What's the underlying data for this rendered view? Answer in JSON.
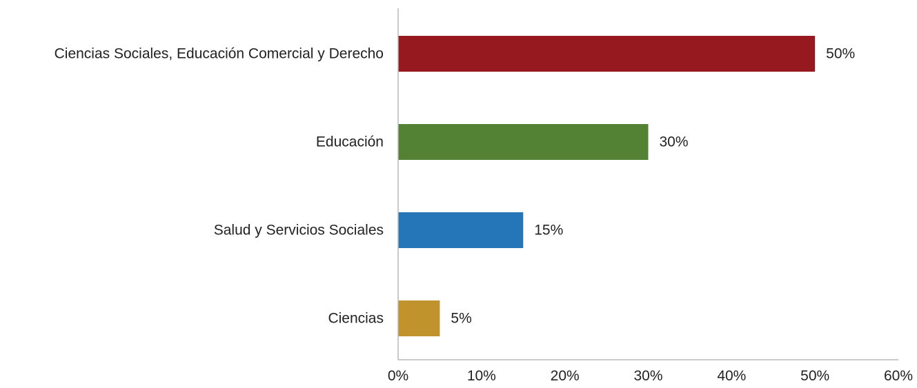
{
  "chart_data": {
    "type": "bar",
    "orientation": "horizontal",
    "categories": [
      "Ciencias Sociales, Educación Comercial y Derecho",
      "Educación",
      "Salud y Servicios Sociales",
      "Ciencias"
    ],
    "values": [
      50,
      30,
      15,
      5
    ],
    "value_labels": [
      "50%",
      "30%",
      "15%",
      "5%"
    ],
    "colors": [
      "#95191e",
      "#548235",
      "#2476b8",
      "#c0932d"
    ],
    "title": "",
    "xlabel": "",
    "ylabel": "",
    "xlim": [
      0,
      60
    ],
    "xticks": [
      0,
      10,
      20,
      30,
      40,
      50,
      60
    ],
    "xtick_labels": [
      "0%",
      "10%",
      "20%",
      "30%",
      "40%",
      "50%",
      "60%"
    ],
    "grid": false,
    "legend": "none"
  }
}
